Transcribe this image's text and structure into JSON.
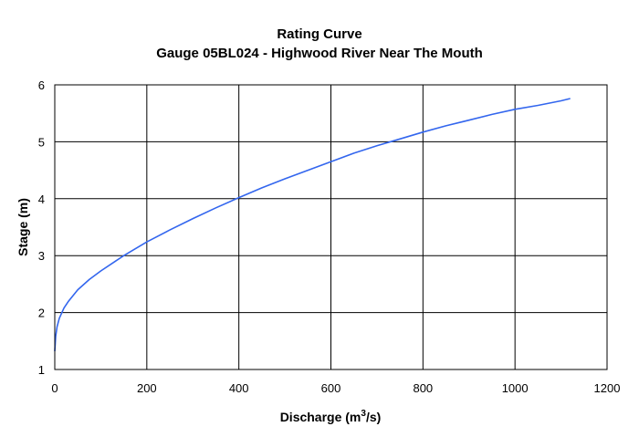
{
  "chart_data": {
    "type": "line",
    "title": "Rating Curve",
    "subtitle": "Gauge 05BL024 - Highwood River Near The Mouth",
    "xlabel_main": "Discharge (m",
    "xlabel_sup": "3",
    "xlabel_tail": "/s)",
    "ylabel": "Stage (m)",
    "xlim": [
      0,
      1200
    ],
    "ylim": [
      1,
      6
    ],
    "xticks": [
      "0",
      "200",
      "400",
      "600",
      "800",
      "1000",
      "1200"
    ],
    "yticks": [
      "1",
      "2",
      "3",
      "4",
      "5",
      "6"
    ],
    "grid": true,
    "legend": "none",
    "series": [
      {
        "color": "#3366ee",
        "x": [
          0,
          2,
          5,
          10,
          20,
          30,
          50,
          75,
          100,
          150,
          200,
          250,
          300,
          350,
          400,
          450,
          500,
          550,
          600,
          650,
          700,
          750,
          800,
          850,
          900,
          950,
          1000,
          1050,
          1100,
          1120
        ],
        "y": [
          1.32,
          1.58,
          1.75,
          1.9,
          2.08,
          2.2,
          2.4,
          2.58,
          2.73,
          3.0,
          3.24,
          3.45,
          3.65,
          3.84,
          4.02,
          4.19,
          4.35,
          4.5,
          4.65,
          4.8,
          4.93,
          5.05,
          5.17,
          5.28,
          5.38,
          5.48,
          5.57,
          5.64,
          5.72,
          5.76
        ]
      }
    ]
  }
}
